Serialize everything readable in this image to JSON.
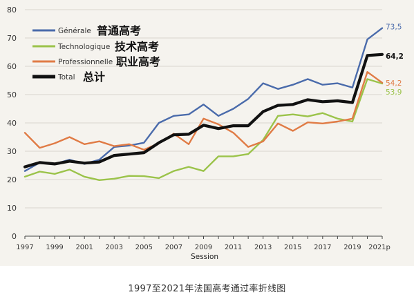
{
  "caption": "1997至2021年法国高考通过率折线图",
  "chart_data": {
    "type": "line",
    "xlabel": "Session",
    "ylabel": "",
    "title": "",
    "ylim": [
      0,
      80
    ],
    "yticks": [
      0,
      10,
      20,
      30,
      40,
      50,
      60,
      70,
      80
    ],
    "xlim": [
      1997,
      2021
    ],
    "xticks": [
      1997,
      1999,
      2001,
      2003,
      2005,
      2007,
      2009,
      2011,
      2013,
      2015,
      2017,
      2019,
      2021
    ],
    "xtick_labels": [
      "1997",
      "1999",
      "2001",
      "2003",
      "2005",
      "2007",
      "2009",
      "2011",
      "2013",
      "2015",
      "2017",
      "2019",
      "2021p"
    ],
    "grid": "horizontal",
    "legend_position": "top-left",
    "x": [
      1997,
      1998,
      1999,
      2000,
      2001,
      2002,
      2003,
      2004,
      2005,
      2006,
      2007,
      2008,
      2009,
      2010,
      2011,
      2012,
      2013,
      2014,
      2015,
      2016,
      2017,
      2018,
      2019,
      2020,
      2021
    ],
    "series": [
      {
        "name": "Générale",
        "name_zh": "普通高考",
        "color": "#4a6bab",
        "values": [
          23,
          26,
          25.5,
          27,
          25.5,
          27,
          31.5,
          32,
          33,
          40,
          42.5,
          43,
          46.5,
          42.5,
          45,
          48.5,
          54,
          52,
          53.5,
          55.5,
          53.5,
          54,
          52.5,
          69.5,
          73.5
        ],
        "end_label": "73,5"
      },
      {
        "name": "Technologique",
        "name_zh": "技术高考",
        "color": "#9bc34a",
        "values": [
          21,
          22.8,
          22,
          23.5,
          21,
          19.8,
          20.3,
          21.3,
          21.2,
          20.5,
          23,
          24.5,
          23,
          28.2,
          28.2,
          29,
          34,
          42.5,
          43,
          42.3,
          43.5,
          41.5,
          40.5,
          55.5,
          53.9
        ],
        "end_label": "53,9"
      },
      {
        "name": "Professionnelle",
        "name_zh": "职业高考",
        "color": "#e07b45",
        "values": [
          36.5,
          31.2,
          32.8,
          35,
          32.5,
          33.5,
          31.8,
          32.5,
          30.5,
          32.8,
          36.2,
          32.5,
          41.5,
          39.5,
          36.5,
          31.5,
          33.5,
          39.8,
          37.2,
          40.2,
          39.8,
          40.5,
          41.5,
          58,
          54.2
        ],
        "end_label": "54,2"
      },
      {
        "name": "Total",
        "name_zh": "总计",
        "color": "#111111",
        "values": [
          24.5,
          26,
          25.5,
          26.5,
          25.8,
          26.2,
          28.5,
          29,
          29.5,
          33,
          35.8,
          36,
          39.2,
          38,
          39,
          39,
          44,
          46.2,
          46.5,
          48.2,
          47.5,
          47.8,
          47.2,
          63.8,
          64.2
        ],
        "end_label": "64,2"
      }
    ]
  }
}
